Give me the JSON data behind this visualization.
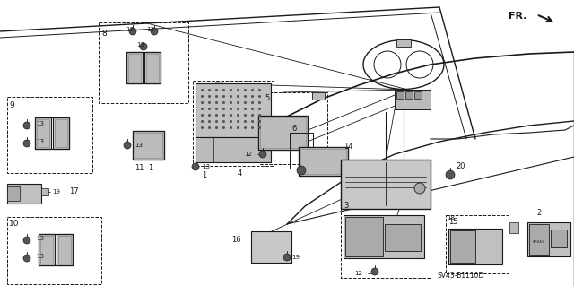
{
  "bg_color": "#ffffff",
  "line_color": "#1a1a1a",
  "gray_fill": "#d8d8d8",
  "dark_gray": "#888888",
  "diagram_label": "SV43-B1110D"
}
